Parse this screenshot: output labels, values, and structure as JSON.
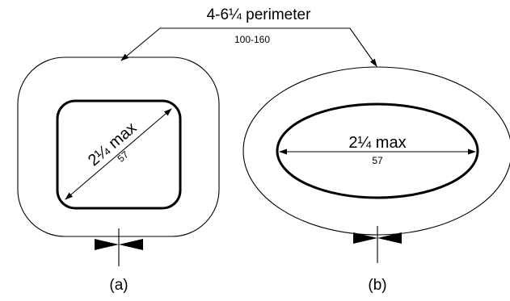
{
  "perimeter": {
    "label": "4-6¼ perimeter",
    "metric": "100-160"
  },
  "diagram_a": {
    "dimension_label": "2¼ max",
    "dimension_metric": "57",
    "caption": "(a)"
  },
  "diagram_b": {
    "dimension_label": "2¼ max",
    "dimension_metric": "57",
    "caption": "(b)"
  },
  "colors": {
    "line": "#000000",
    "background": "#ffffff"
  }
}
